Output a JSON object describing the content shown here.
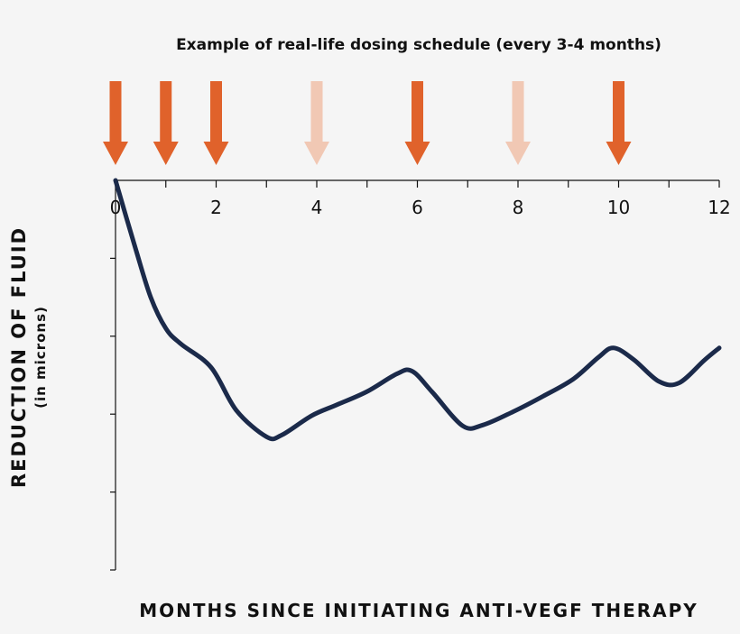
{
  "chart_data": {
    "type": "line",
    "title": "Example of real-life dosing schedule (every 3-4 months)",
    "xlabel": "MONTHS SINCE INITIATING ANTI-VEGF THERAPY",
    "ylabel": "REDUCTION OF FLUID",
    "ylabel_sub": "(in microns)",
    "xlim": [
      0,
      12
    ],
    "ylim": [
      0,
      5
    ],
    "x_ticks": [
      0,
      2,
      4,
      6,
      8,
      10,
      12
    ],
    "x_minor_ticks": [
      1,
      3,
      5,
      7,
      9,
      11
    ],
    "y_ticks": [
      1,
      2,
      3,
      4,
      5
    ],
    "grid": false,
    "series": [
      {
        "name": "Fluid reduction",
        "color": "#1b2a4a",
        "x": [
          0,
          0.4,
          0.7,
          1.0,
          1.3,
          1.9,
          2.4,
          3.0,
          3.3,
          3.9,
          4.4,
          5.0,
          5.6,
          5.9,
          6.3,
          6.9,
          7.3,
          7.9,
          8.5,
          9.1,
          9.6,
          9.9,
          10.3,
          10.8,
          11.2,
          11.7,
          12.0
        ],
        "y": [
          0,
          0.88,
          1.5,
          1.9,
          2.1,
          2.4,
          2.95,
          3.29,
          3.27,
          3.02,
          2.88,
          2.71,
          2.48,
          2.45,
          2.72,
          3.15,
          3.14,
          2.97,
          2.77,
          2.55,
          2.27,
          2.15,
          2.3,
          2.58,
          2.6,
          2.31,
          2.15
        ]
      }
    ],
    "dose_markers": [
      {
        "month": 0,
        "style": "solid"
      },
      {
        "month": 1,
        "style": "solid"
      },
      {
        "month": 2,
        "style": "solid"
      },
      {
        "month": 4,
        "style": "faded"
      },
      {
        "month": 6,
        "style": "solid"
      },
      {
        "month": 8,
        "style": "faded"
      },
      {
        "month": 10,
        "style": "solid"
      }
    ],
    "marker_colors": {
      "solid": "#e0622b",
      "faded": "#f1c8b4"
    }
  }
}
